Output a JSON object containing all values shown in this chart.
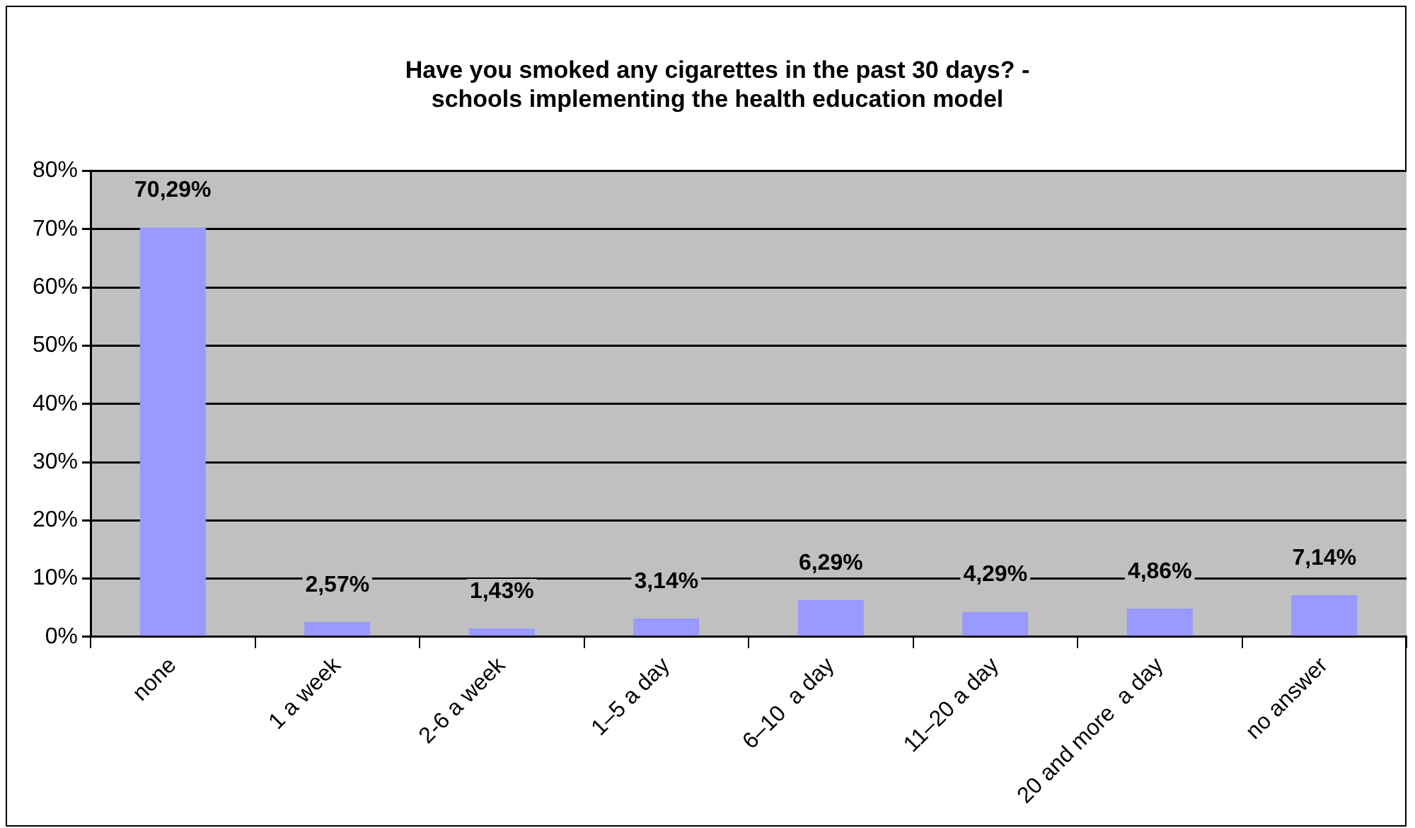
{
  "chart_data": {
    "type": "bar",
    "title": "Have you smoked any cigarettes in the past 30 days? -\nschools implementing the health education model",
    "categories": [
      "none",
      "1 a week",
      "2-6 a week",
      "1–5 a day",
      "6–10  a day",
      "11–20 a day",
      "20 and more  a day",
      "no answer"
    ],
    "values": [
      70.29,
      2.57,
      1.43,
      3.14,
      6.29,
      4.29,
      4.86,
      7.14
    ],
    "value_labels": [
      "70,29%",
      "2,57%",
      "1,43%",
      "3,14%",
      "6,29%",
      "4,29%",
      "4,86%",
      "7,14%"
    ],
    "color": "#9999ff",
    "ylim": [
      0,
      80
    ],
    "yticks": [
      {
        "value": 0,
        "label": "0%"
      },
      {
        "value": 10,
        "label": "10%"
      },
      {
        "value": 20,
        "label": "20%"
      },
      {
        "value": 30,
        "label": "30%"
      },
      {
        "value": 40,
        "label": "40%"
      },
      {
        "value": 50,
        "label": "50%"
      },
      {
        "value": 60,
        "label": "60%"
      },
      {
        "value": 70,
        "label": "70%"
      },
      {
        "value": 80,
        "label": "80%"
      }
    ],
    "grid": "y",
    "legend": false
  }
}
